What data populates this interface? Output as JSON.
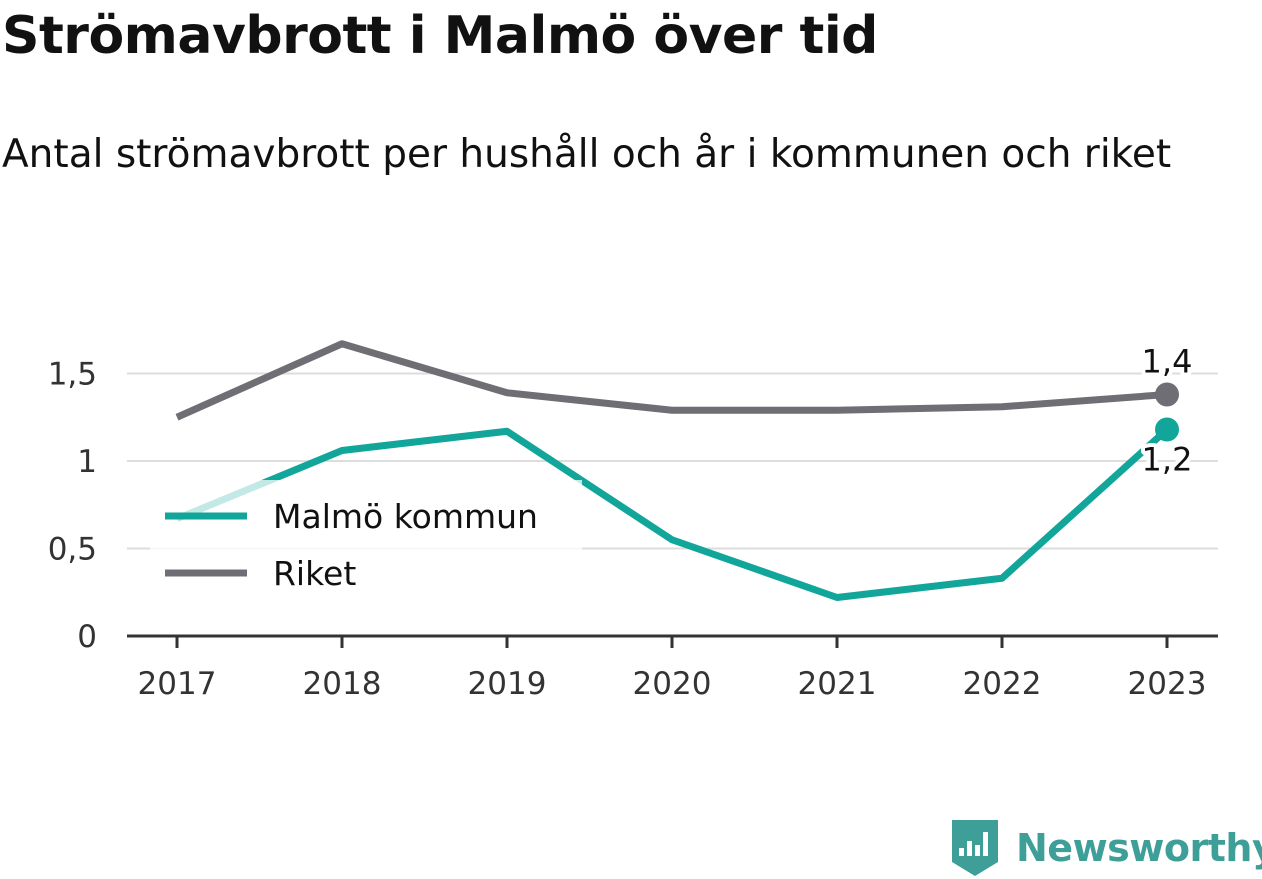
{
  "title": "Strömavbrott i Malmö över tid",
  "subtitle": "Antal strömavbrott per hushåll och år i kommunen och riket",
  "brand": {
    "name": "Newsworthy",
    "logo_icon": "newsworthy-logo-icon",
    "color": "#3e9e98"
  },
  "chart_data": {
    "type": "line",
    "x": [
      "2017",
      "2018",
      "2019",
      "2020",
      "2021",
      "2022",
      "2023"
    ],
    "y_ticks": [
      {
        "value": 0,
        "label": "0"
      },
      {
        "value": 0.5,
        "label": "0,5"
      },
      {
        "value": 1,
        "label": "1"
      },
      {
        "value": 1.5,
        "label": "1,5"
      }
    ],
    "ylim": [
      0,
      1.75
    ],
    "grid": true,
    "legend_position": "left-middle",
    "series": [
      {
        "name": "Malmö kommun",
        "color": "#12a69b",
        "values": [
          0.67,
          1.06,
          1.17,
          0.55,
          0.22,
          0.33,
          1.18
        ],
        "end_label": "1,2"
      },
      {
        "name": "Riket",
        "color": "#6f6e74",
        "values": [
          1.25,
          1.67,
          1.39,
          1.29,
          1.29,
          1.31,
          1.38
        ],
        "end_label": "1,4"
      }
    ]
  }
}
